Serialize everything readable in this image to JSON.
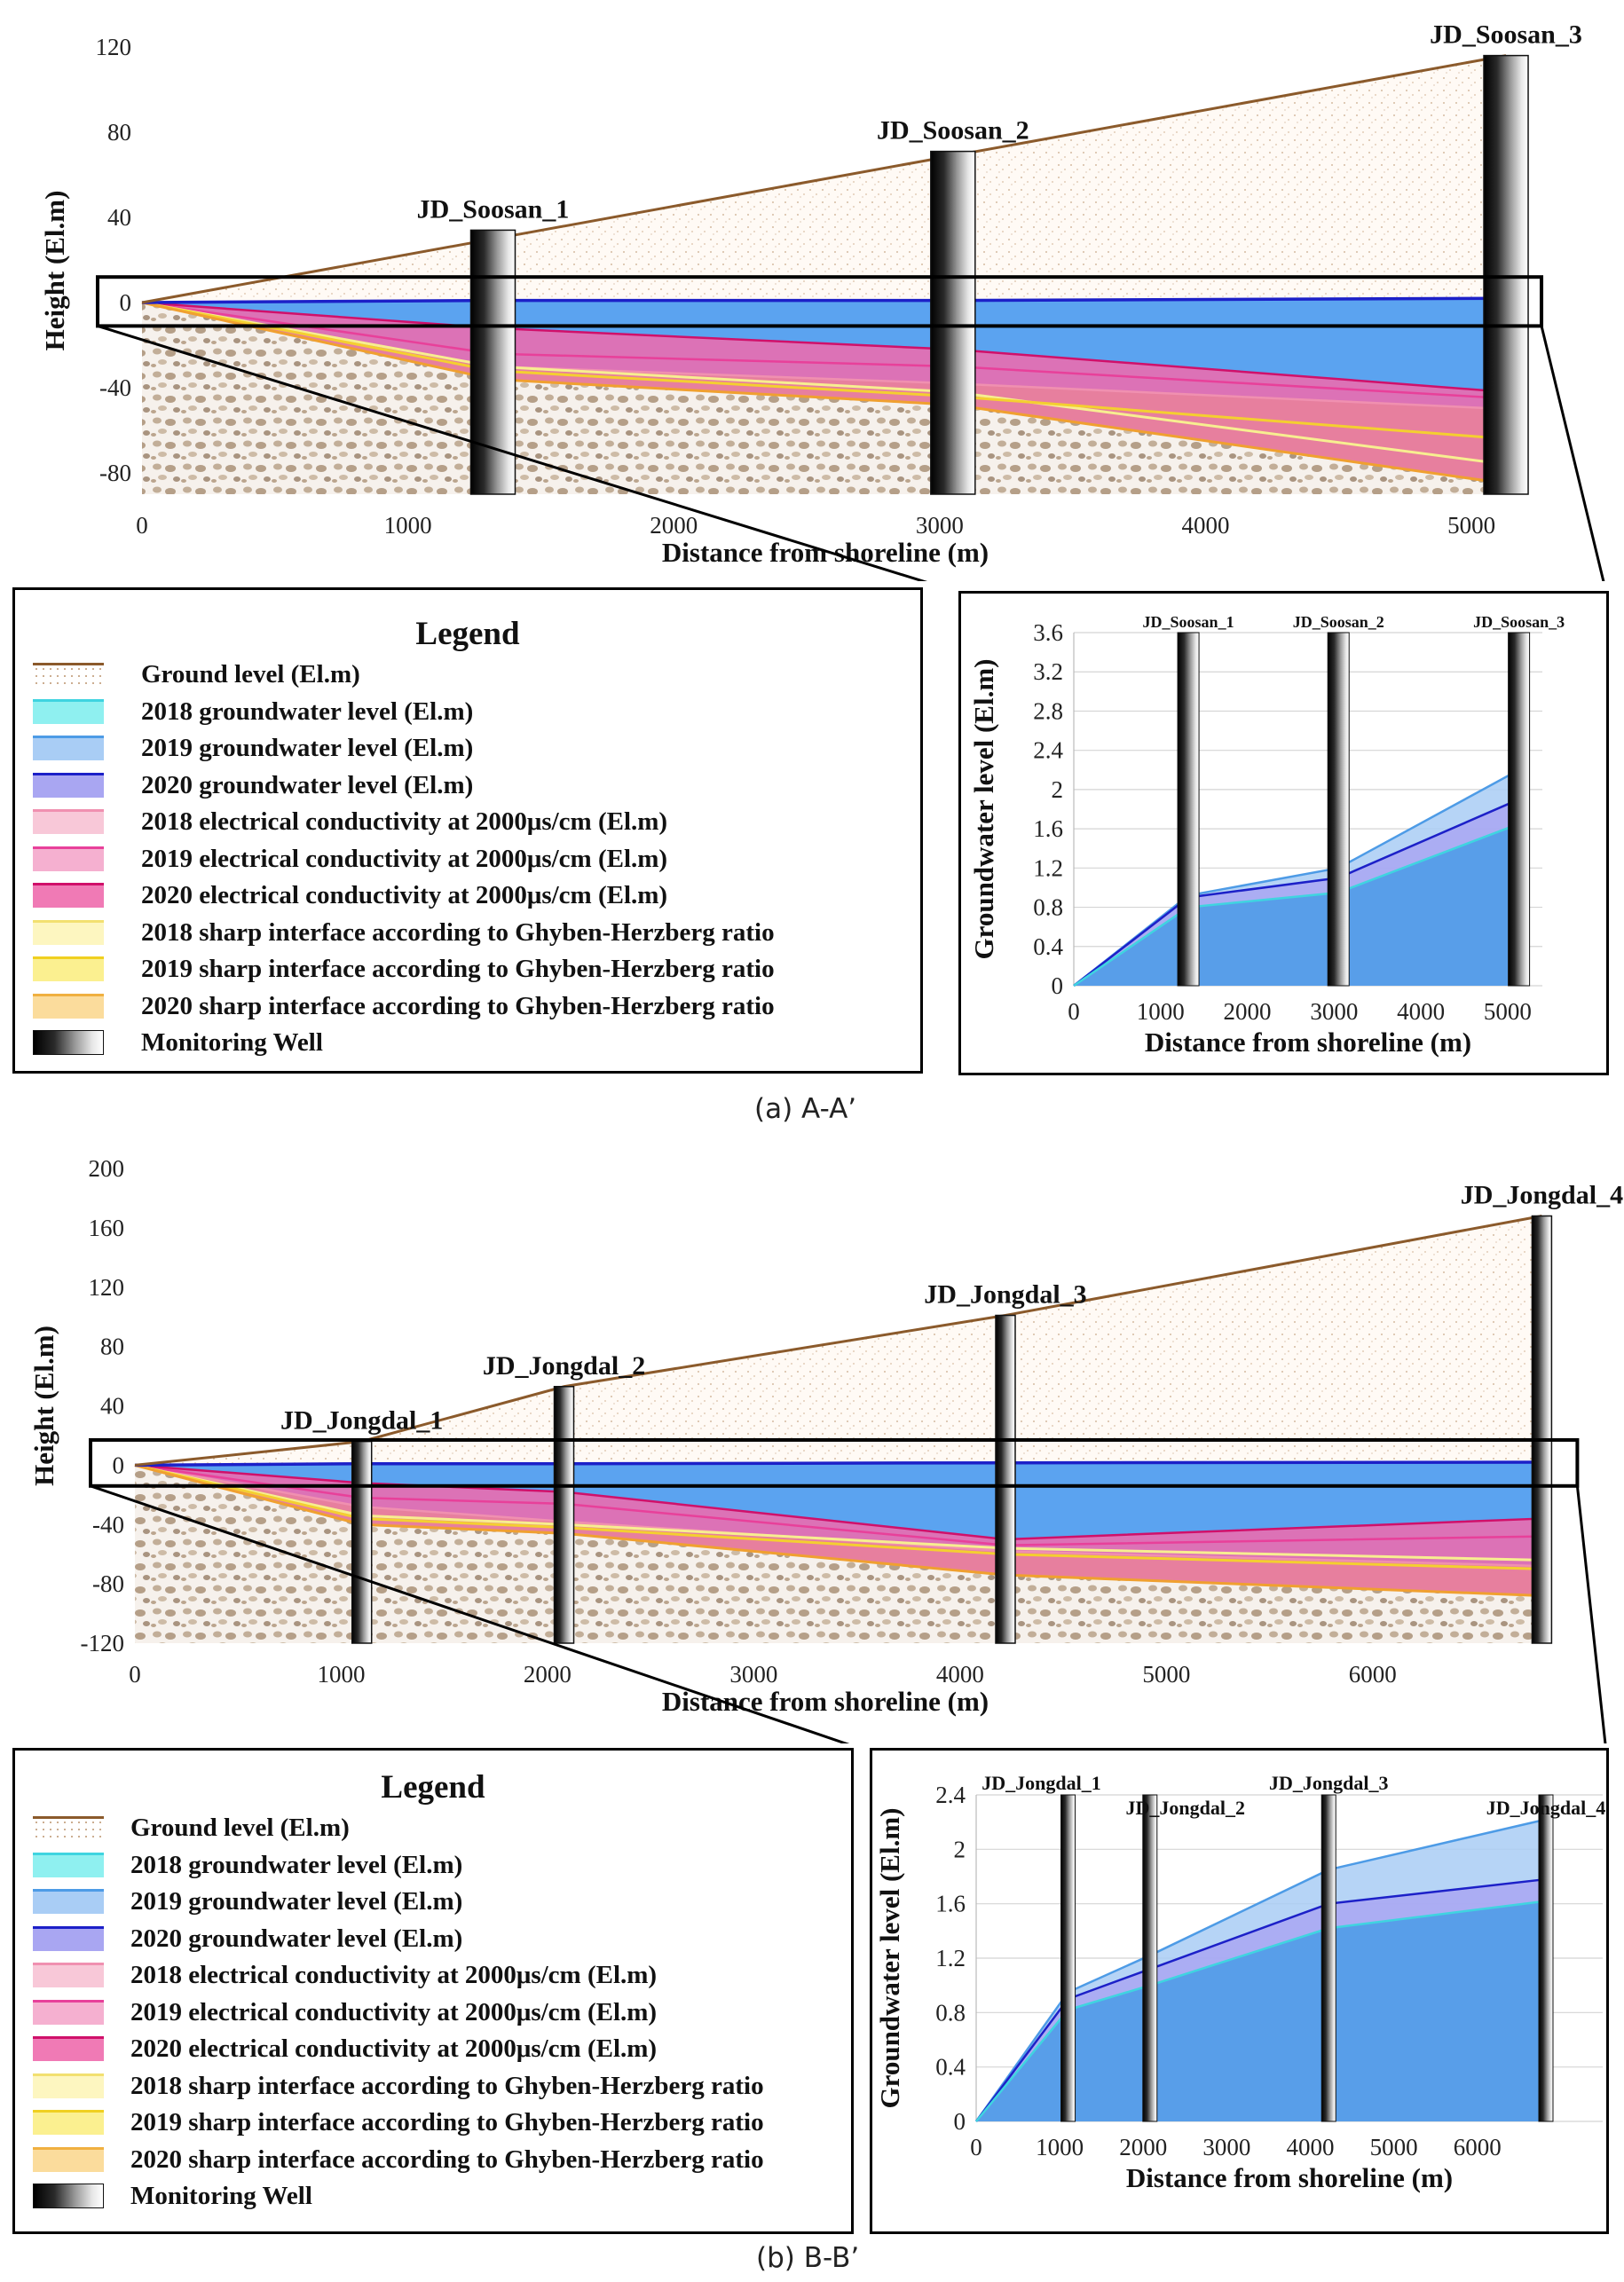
{
  "captions": {
    "a": "(a) A-A’",
    "b": "(b) B-B’"
  },
  "legend": {
    "title": "Legend",
    "items": [
      {
        "label": "Ground level (El.m)",
        "type": "line",
        "color": "#8b5a2b"
      },
      {
        "label": "2018 groundwater level (El.m)",
        "type": "fill",
        "fill": "#8ff0f0",
        "edge": "#3fd4e0"
      },
      {
        "label": "2019 groundwater level (El.m)",
        "type": "fill",
        "fill": "#a9cdf5",
        "edge": "#4d9be6"
      },
      {
        "label": "2020 groundwater level (El.m)",
        "type": "fill",
        "fill": "#a9a6f2",
        "edge": "#1c20c8"
      },
      {
        "label": "2018 electrical conductivity at 2000μs/cm (El.m)",
        "type": "fill",
        "fill": "#f8c8d8",
        "edge": "#f090b0"
      },
      {
        "label": "2019 electrical conductivity at 2000μs/cm (El.m)",
        "type": "fill",
        "fill": "#f5b0d0",
        "edge": "#e8409a"
      },
      {
        "label": "2020 electrical conductivity at 2000μs/cm (El.m)",
        "type": "fill",
        "fill": "#f07ab5",
        "edge": "#d0106a"
      },
      {
        "label": "2018 sharp interface according to Ghyben-Herzberg ratio",
        "type": "fill",
        "fill": "#fdf6c0",
        "edge": "#f2e070"
      },
      {
        "label": "2019 sharp interface according to Ghyben-Herzberg ratio",
        "type": "fill",
        "fill": "#fbf090",
        "edge": "#f0d020"
      },
      {
        "label": "2020 sharp interface according to Ghyben-Herzberg ratio",
        "type": "fill",
        "fill": "#fbdc9c",
        "edge": "#f0b040"
      },
      {
        "label": "Monitoring Well",
        "type": "well"
      }
    ]
  },
  "chart_data": [
    {
      "id": "a-main",
      "type": "area",
      "xlabel": "Distance from shoreline (m)",
      "ylabel": "Height (El.m)",
      "xlim": [
        0,
        5200
      ],
      "ylim": [
        -90,
        120
      ],
      "xticks": [
        0,
        1000,
        2000,
        3000,
        4000,
        5000
      ],
      "yticks": [
        -80,
        -40,
        0,
        40,
        80,
        120
      ],
      "wells": [
        {
          "name": "JD_Soosan_1",
          "x": 1320,
          "top": 34
        },
        {
          "name": "JD_Soosan_2",
          "x": 3050,
          "top": 71
        },
        {
          "name": "JD_Soosan_3",
          "x": 5130,
          "top": 116
        }
      ],
      "ground": {
        "x": [
          0,
          5130
        ],
        "y": [
          0,
          116
        ]
      },
      "groundwater": {
        "x": [
          0,
          1320,
          3050,
          5130
        ],
        "y": [
          0,
          1,
          1,
          2
        ]
      },
      "ec": [
        {
          "year": "2018",
          "x": [
            0,
            1320,
            3050,
            5130
          ],
          "y": [
            0,
            -30,
            -38,
            -50
          ]
        },
        {
          "year": "2019",
          "x": [
            0,
            1320,
            3050,
            5130
          ],
          "y": [
            0,
            -24,
            -30,
            -45
          ]
        },
        {
          "year": "2020",
          "x": [
            0,
            1320,
            3050,
            5130
          ],
          "y": [
            0,
            -12,
            -22,
            -42
          ]
        }
      ],
      "interface": [
        {
          "year": "2018",
          "x": [
            0,
            1320,
            3050,
            5130
          ],
          "y": [
            0,
            -30,
            -42,
            -76
          ]
        },
        {
          "year": "2019",
          "x": [
            0,
            1320,
            3050,
            5130
          ],
          "y": [
            0,
            -32,
            -44,
            -64
          ]
        },
        {
          "year": "2020",
          "x": [
            0,
            1320,
            3050,
            5130
          ],
          "y": [
            0,
            -36,
            -48,
            -85
          ]
        }
      ],
      "base": -90
    },
    {
      "id": "a-inset",
      "type": "area",
      "xlabel": "Distance from shoreline (m)",
      "ylabel": "Groundwater level (El.m)",
      "xlim": [
        0,
        5400
      ],
      "ylim": [
        0,
        3.6
      ],
      "xticks": [
        0,
        1000,
        2000,
        3000,
        4000,
        5000
      ],
      "yticks": [
        0,
        0.4,
        0.8,
        1.2,
        1.6,
        2,
        2.4,
        2.8,
        3.2,
        3.6
      ],
      "wells": [
        {
          "name": "JD_Soosan_1",
          "x": 1320
        },
        {
          "name": "JD_Soosan_2",
          "x": 3050
        },
        {
          "name": "JD_Soosan_3",
          "x": 5130
        }
      ],
      "series": [
        {
          "name": "2018",
          "x": [
            0,
            1320,
            3050,
            5130
          ],
          "y": [
            0,
            0.8,
            0.95,
            1.65
          ]
        },
        {
          "name": "2019",
          "x": [
            0,
            1320,
            3050,
            5130
          ],
          "y": [
            0,
            0.92,
            1.2,
            2.2
          ]
        },
        {
          "name": "2020",
          "x": [
            0,
            1320,
            3050,
            5130
          ],
          "y": [
            0,
            0.9,
            1.1,
            1.9
          ]
        }
      ]
    },
    {
      "id": "b-main",
      "type": "area",
      "xlabel": "Distance from shoreline (m)",
      "ylabel": "Height (El.m)",
      "xlim": [
        0,
        6900
      ],
      "ylim": [
        -120,
        200
      ],
      "xticks": [
        0,
        1000,
        2000,
        3000,
        4000,
        5000,
        6000
      ],
      "yticks": [
        -120,
        -80,
        -40,
        0,
        40,
        80,
        120,
        160,
        200
      ],
      "wells": [
        {
          "name": "JD_Jongdal_1",
          "x": 1100,
          "top": 16
        },
        {
          "name": "JD_Jongdal_2",
          "x": 2080,
          "top": 53
        },
        {
          "name": "JD_Jongdal_3",
          "x": 4220,
          "top": 101
        },
        {
          "name": "JD_Jongdal_4",
          "x": 6820,
          "top": 168
        }
      ],
      "ground": {
        "x": [
          0,
          1100,
          2080,
          4220,
          6820
        ],
        "y": [
          0,
          16,
          53,
          101,
          168
        ]
      },
      "groundwater": {
        "x": [
          0,
          1100,
          2080,
          4220,
          6820
        ],
        "y": [
          0,
          1,
          1,
          1.6,
          2
        ]
      },
      "ec": [
        {
          "year": "2018",
          "x": [
            0,
            1100,
            2080,
            4220,
            6820
          ],
          "y": [
            0,
            -28,
            -38,
            -58,
            -68
          ]
        },
        {
          "year": "2019",
          "x": [
            0,
            1100,
            2080,
            4220,
            6820
          ],
          "y": [
            0,
            -22,
            -26,
            -54,
            -48
          ]
        },
        {
          "year": "2020",
          "x": [
            0,
            1100,
            2080,
            4220,
            6820
          ],
          "y": [
            0,
            -12,
            -18,
            -50,
            -36
          ]
        }
      ],
      "interface": [
        {
          "year": "2018",
          "x": [
            0,
            1100,
            2080,
            4220,
            6820
          ],
          "y": [
            0,
            -34,
            -40,
            -56,
            -64
          ]
        },
        {
          "year": "2019",
          "x": [
            0,
            1100,
            2080,
            4220,
            6820
          ],
          "y": [
            0,
            -36,
            -42,
            -60,
            -70
          ]
        },
        {
          "year": "2020",
          "x": [
            0,
            1100,
            2080,
            4220,
            6820
          ],
          "y": [
            0,
            -40,
            -46,
            -74,
            -88
          ]
        }
      ],
      "base": -120
    },
    {
      "id": "b-inset",
      "type": "area",
      "xlabel": "Distance from shoreline (m)",
      "ylabel": "Groundwater level (El.m)",
      "xlim": [
        0,
        7500
      ],
      "ylim": [
        0,
        2.4
      ],
      "xticks": [
        0,
        1000,
        2000,
        3000,
        4000,
        5000,
        6000
      ],
      "yticks": [
        0,
        0.4,
        0.8,
        1.2,
        1.6,
        2,
        2.4
      ],
      "wells": [
        {
          "name": "JD_Jongdal_1",
          "x": 1100
        },
        {
          "name": "JD_Jongdal_2",
          "x": 2080
        },
        {
          "name": "JD_Jongdal_3",
          "x": 4220
        },
        {
          "name": "JD_Jongdal_4",
          "x": 6820
        }
      ],
      "series": [
        {
          "name": "2018",
          "x": [
            0,
            1100,
            2080,
            4220,
            6820
          ],
          "y": [
            0,
            0.82,
            1.0,
            1.42,
            1.62
          ]
        },
        {
          "name": "2019",
          "x": [
            0,
            1100,
            2080,
            4220,
            6820
          ],
          "y": [
            0,
            0.95,
            1.22,
            1.85,
            2.22
          ]
        },
        {
          "name": "2020",
          "x": [
            0,
            1100,
            2080,
            4220,
            6820
          ],
          "y": [
            0,
            0.9,
            1.12,
            1.6,
            1.78
          ]
        }
      ]
    }
  ]
}
